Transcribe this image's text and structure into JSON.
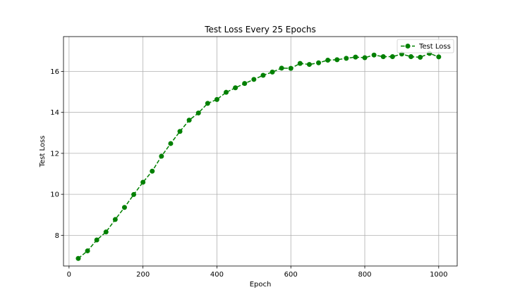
{
  "chart_data": {
    "type": "line",
    "title": "Test Loss Every 25 Epochs",
    "xlabel": "Epoch",
    "ylabel": "Test Loss",
    "xlim": [
      -15,
      1050
    ],
    "ylim": [
      6.5,
      17.7
    ],
    "xticks": [
      0,
      200,
      400,
      600,
      800,
      1000
    ],
    "yticks": [
      8,
      10,
      12,
      14,
      16
    ],
    "grid": true,
    "legend_position": "top-right",
    "series": [
      {
        "name": "Test Loss",
        "color": "#008000",
        "line_style": "dashed",
        "marker": "circle",
        "x": [
          25,
          50,
          75,
          100,
          125,
          150,
          175,
          200,
          225,
          250,
          275,
          300,
          325,
          350,
          375,
          400,
          425,
          450,
          475,
          500,
          525,
          550,
          575,
          600,
          625,
          650,
          675,
          700,
          725,
          750,
          775,
          800,
          825,
          850,
          875,
          900,
          925,
          950,
          975,
          1000
        ],
        "y": [
          6.87,
          7.24,
          7.77,
          8.16,
          8.77,
          9.36,
          9.99,
          10.59,
          11.13,
          11.86,
          12.48,
          13.07,
          13.62,
          13.97,
          14.44,
          14.63,
          14.98,
          15.2,
          15.41,
          15.61,
          15.81,
          15.97,
          16.16,
          16.15,
          16.39,
          16.34,
          16.42,
          16.55,
          16.57,
          16.64,
          16.7,
          16.67,
          16.8,
          16.72,
          16.72,
          16.85,
          16.72,
          16.69,
          16.88,
          16.71
        ]
      }
    ]
  }
}
